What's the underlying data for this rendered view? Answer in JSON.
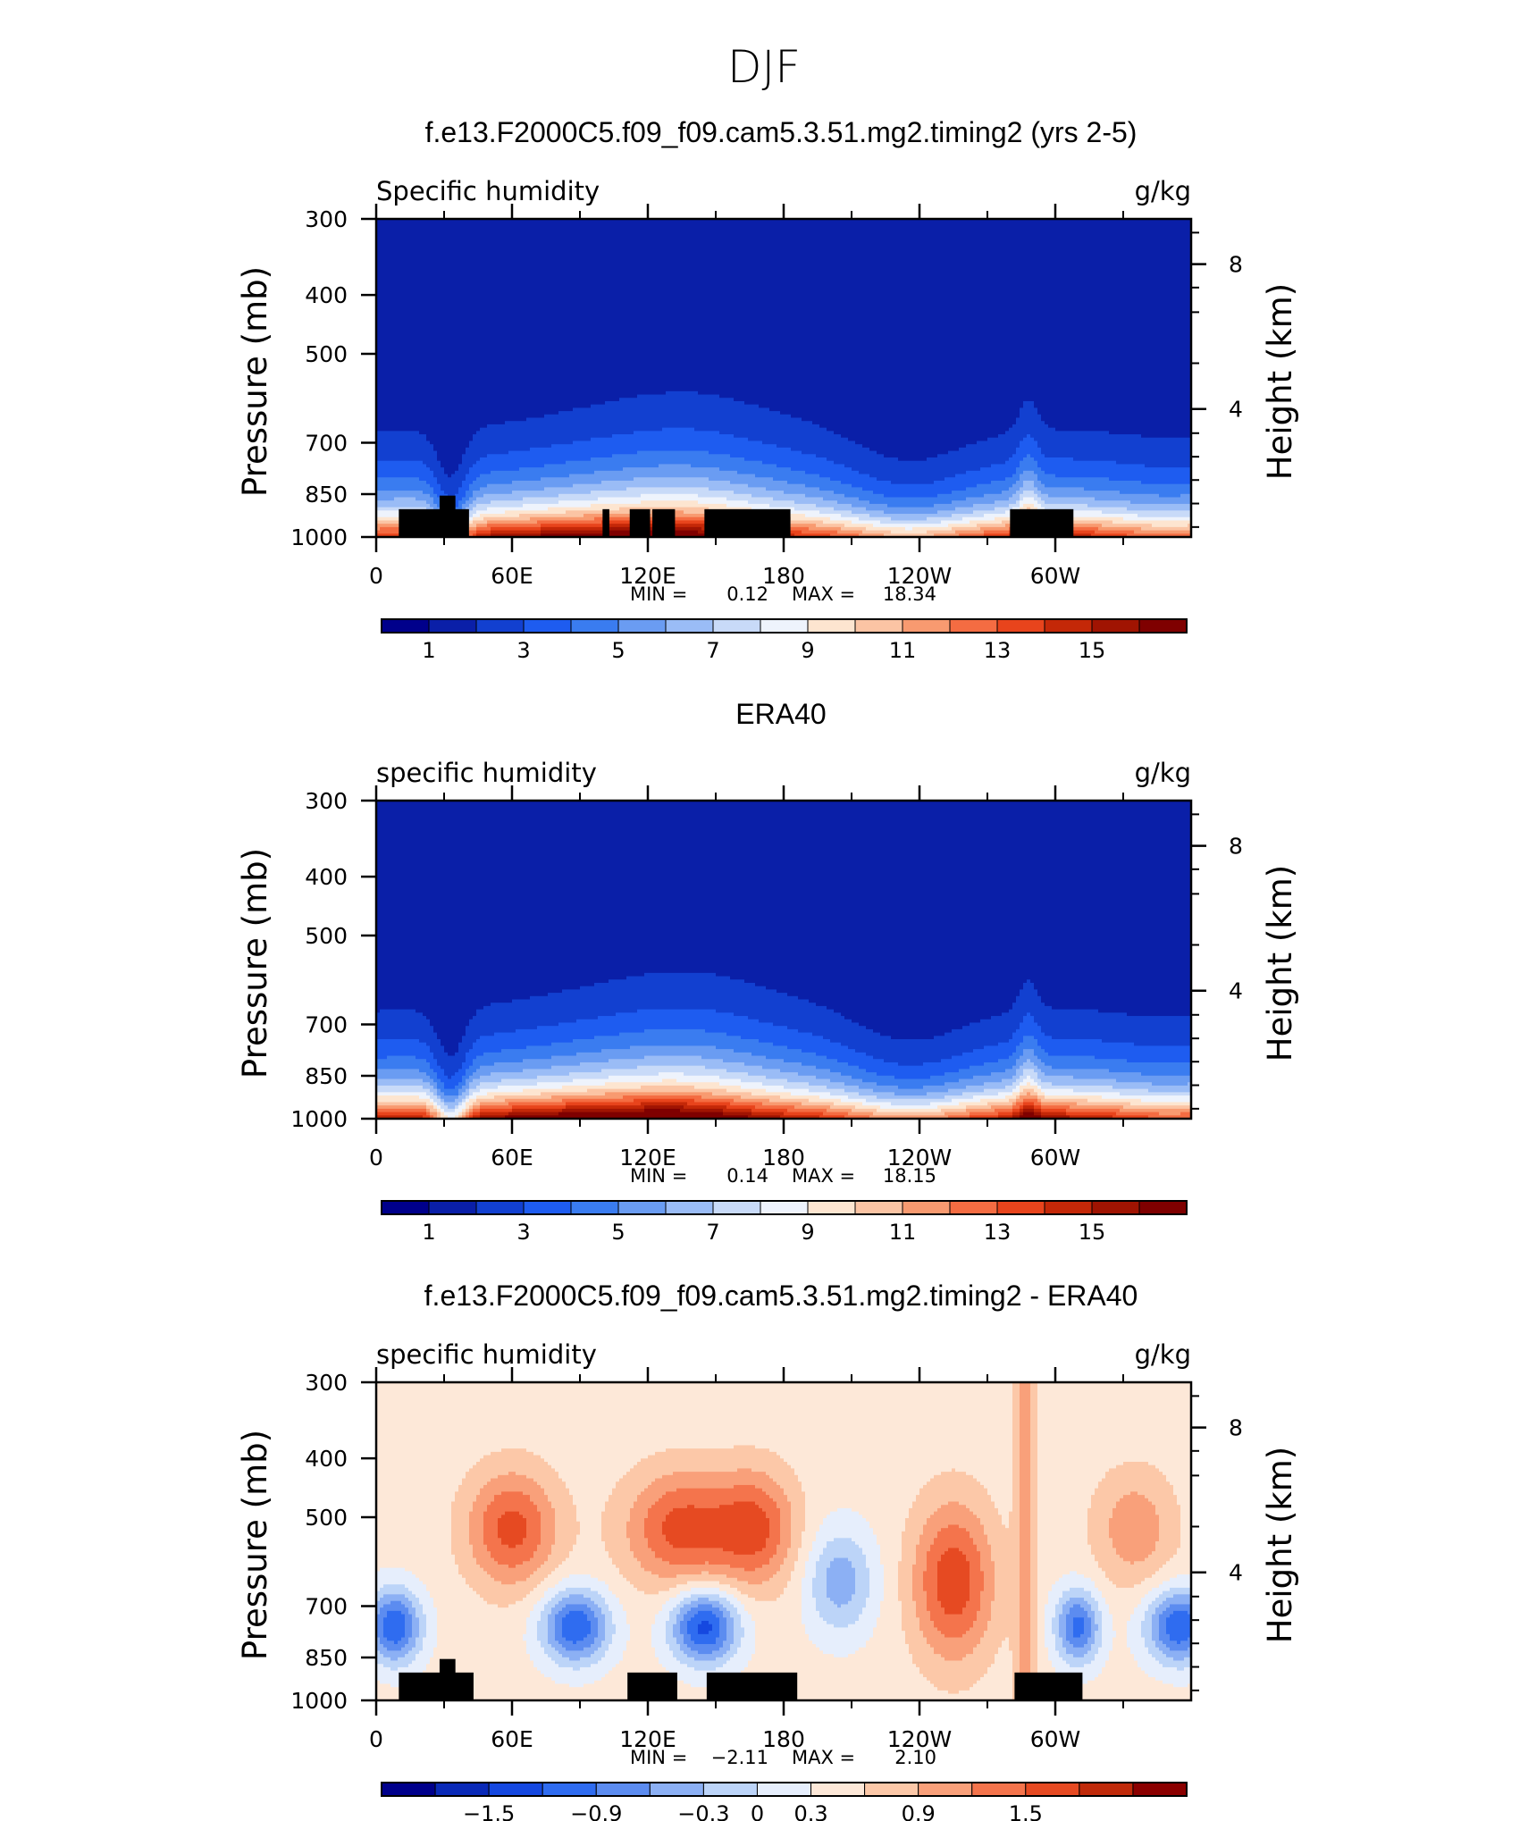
{
  "page_title": "DJF",
  "chart_data": [
    {
      "type": "heatmap",
      "title": "f.e13.F2000C5.f09_f09.cam5.3.51.mg2.timing2 (yrs 2-5)",
      "left_label": "Specific humidity",
      "right_label": "g/kg",
      "ylabel": "Pressure (mb)",
      "ylabel_right": "Height (km)",
      "yticks": [
        "300",
        "400",
        "500",
        "700",
        "850",
        "1000"
      ],
      "yticks_right": [
        "8",
        "4"
      ],
      "xticks": [
        "0",
        "60E",
        "120E",
        "180",
        "120W",
        "60W"
      ],
      "ylim": [
        1000,
        300
      ],
      "xlim": [
        0,
        360
      ],
      "min_label": "MIN =",
      "min_value": "0.12",
      "max_label": "MAX =",
      "max_value": "18.34",
      "colorbar_labels": [
        "1",
        "3",
        "5",
        "7",
        "9",
        "11",
        "13",
        "15"
      ],
      "colorbar_levels": [
        0,
        1,
        2,
        3,
        4,
        5,
        6,
        7,
        8,
        9,
        10,
        11,
        12,
        13,
        14,
        15,
        16
      ],
      "colors": [
        "#00008b",
        "#0a1fa8",
        "#1240d0",
        "#1e5cf0",
        "#3a7cf0",
        "#6a9cf2",
        "#9abcf6",
        "#c8daf8",
        "#eef3fc",
        "#fde5d0",
        "#fbc4a4",
        "#f89a70",
        "#f46c42",
        "#e8441c",
        "#c42808",
        "#a01402",
        "#7f0000"
      ],
      "orography": [
        {
          "x0": 10,
          "x1": 41,
          "top": 900
        },
        {
          "x0": 28,
          "x1": 35,
          "top": 855
        },
        {
          "x0": 100,
          "x1": 103,
          "top": 900
        },
        {
          "x0": 112,
          "x1": 121,
          "top": 900
        },
        {
          "x0": 122,
          "x1": 132,
          "top": 900
        },
        {
          "x0": 145,
          "x1": 183,
          "top": 900
        },
        {
          "x0": 280,
          "x1": 308,
          "top": 900
        }
      ]
    },
    {
      "type": "heatmap",
      "title": "ERA40",
      "left_label": "specific humidity",
      "right_label": "g/kg",
      "ylabel": "Pressure (mb)",
      "ylabel_right": "Height (km)",
      "yticks": [
        "300",
        "400",
        "500",
        "700",
        "850",
        "1000"
      ],
      "yticks_right": [
        "8",
        "4"
      ],
      "xticks": [
        "0",
        "60E",
        "120E",
        "180",
        "120W",
        "60W"
      ],
      "ylim": [
        1000,
        300
      ],
      "xlim": [
        0,
        360
      ],
      "min_label": "MIN =",
      "min_value": "0.14",
      "max_label": "MAX =",
      "max_value": "18.15",
      "colorbar_labels": [
        "1",
        "3",
        "5",
        "7",
        "9",
        "11",
        "13",
        "15"
      ],
      "colorbar_levels": [
        0,
        1,
        2,
        3,
        4,
        5,
        6,
        7,
        8,
        9,
        10,
        11,
        12,
        13,
        14,
        15,
        16
      ],
      "colors": [
        "#00008b",
        "#0a1fa8",
        "#1240d0",
        "#1e5cf0",
        "#3a7cf0",
        "#6a9cf2",
        "#9abcf6",
        "#c8daf8",
        "#eef3fc",
        "#fde5d0",
        "#fbc4a4",
        "#f89a70",
        "#f46c42",
        "#e8441c",
        "#c42808",
        "#a01402",
        "#7f0000"
      ],
      "orography": []
    },
    {
      "type": "heatmap",
      "title": "f.e13.F2000C5.f09_f09.cam5.3.51.mg2.timing2 - ERA40",
      "left_label": "specific humidity",
      "right_label": "g/kg",
      "ylabel": "Pressure (mb)",
      "ylabel_right": "Height (km)",
      "yticks": [
        "300",
        "400",
        "500",
        "700",
        "850",
        "1000"
      ],
      "yticks_right": [
        "8",
        "4"
      ],
      "xticks": [
        "0",
        "60E",
        "120E",
        "180",
        "120W",
        "60W"
      ],
      "ylim": [
        1000,
        300
      ],
      "xlim": [
        0,
        360
      ],
      "min_label": "MIN =",
      "min_value": "−2.11",
      "max_label": "MAX =",
      "max_value": "2.10",
      "colorbar_labels": [
        "−1.5",
        "−0.9",
        "−0.3",
        "0",
        "0.3",
        "0.9",
        "1.5"
      ],
      "colorbar_levels": [
        -2.1,
        -1.8,
        -1.5,
        -1.2,
        -0.9,
        -0.6,
        -0.3,
        0,
        0.3,
        0.6,
        0.9,
        1.2,
        1.5,
        1.8,
        2.1
      ],
      "colors": [
        "#00008b",
        "#0a2ab8",
        "#1548e0",
        "#2f6cf0",
        "#5c8cf0",
        "#8cb0f4",
        "#bcd4f8",
        "#e6eefc",
        "#fde8d8",
        "#fcc8a8",
        "#f9a07a",
        "#f4744c",
        "#e64a22",
        "#c02a0a",
        "#8b0000"
      ],
      "orography": [
        {
          "x0": 10,
          "x1": 43,
          "top": 900
        },
        {
          "x0": 28,
          "x1": 35,
          "top": 855
        },
        {
          "x0": 111,
          "x1": 133,
          "top": 900
        },
        {
          "x0": 146,
          "x1": 186,
          "top": 900
        },
        {
          "x0": 282,
          "x1": 312,
          "top": 900
        }
      ]
    }
  ]
}
